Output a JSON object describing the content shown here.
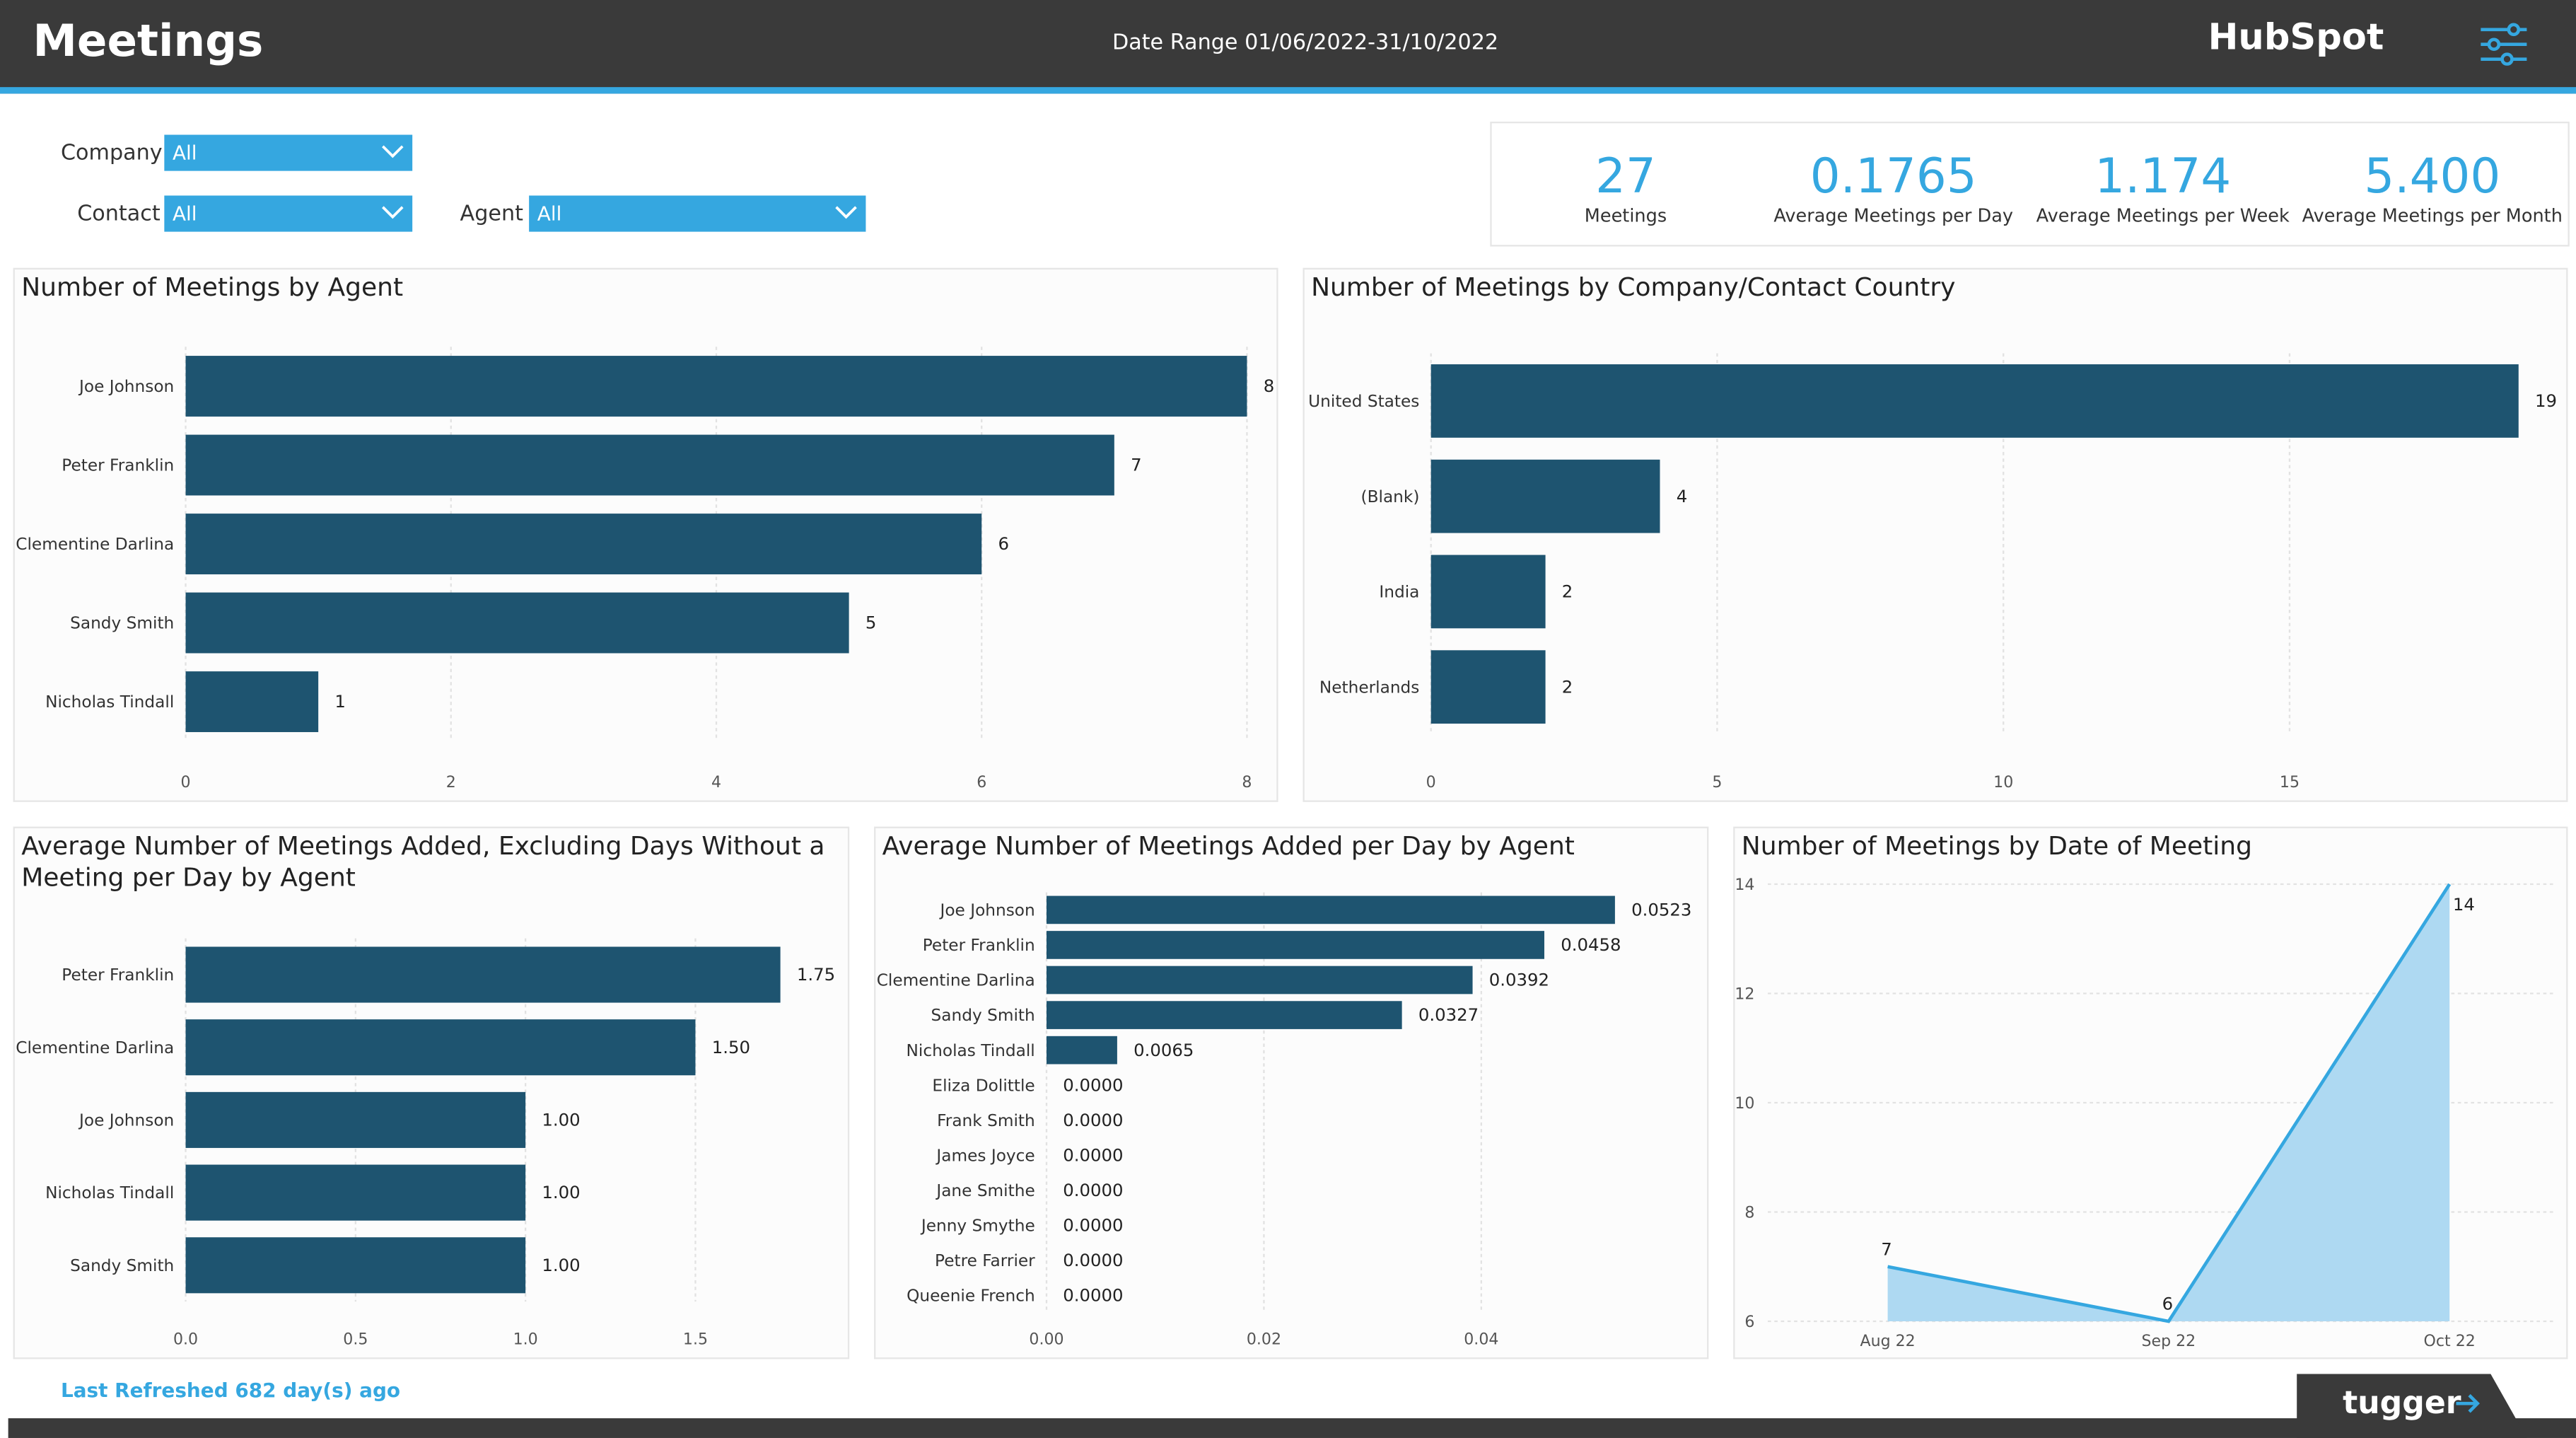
{
  "header": {
    "title": "Meetings",
    "date_range": "Date Range 01/06/2022-31/10/2022",
    "logo_text": "HubSpot",
    "menu_icon": "sliders-menu-icon"
  },
  "filters": {
    "company_label": "Company",
    "company_value": "All",
    "contact_label": "Contact",
    "contact_value": "All",
    "agent_label": "Agent",
    "agent_value": "All"
  },
  "kpis": [
    {
      "value": "27",
      "label": "Meetings"
    },
    {
      "value": "0.1765",
      "label": "Average Meetings per Day"
    },
    {
      "value": "1.174",
      "label": "Average Meetings per Week"
    },
    {
      "value": "5.400",
      "label": "Average Meetings per Month"
    }
  ],
  "colors": {
    "bar": "#1e5470",
    "accent": "#35a7e0",
    "area": "#aed9f2",
    "header": "#3a3a3a"
  },
  "chart_data": [
    {
      "type": "bar",
      "orientation": "horizontal",
      "title": "Number of Meetings by Agent",
      "categories": [
        "Joe Johnson",
        "Peter Franklin",
        "Clementine Darlina",
        "Sandy Smith",
        "Nicholas Tindall"
      ],
      "values": [
        8,
        7,
        6,
        5,
        1
      ],
      "value_labels": [
        "8",
        "7",
        "6",
        "5",
        "1"
      ],
      "xlim": [
        0,
        8
      ],
      "ticks": [
        0,
        2,
        4,
        6,
        8
      ],
      "tick_labels": [
        "0",
        "2",
        "4",
        "6",
        "8"
      ]
    },
    {
      "type": "bar",
      "orientation": "horizontal",
      "title": "Number of Meetings by Company/Contact Country",
      "categories": [
        "United States",
        "(Blank)",
        "India",
        "Netherlands"
      ],
      "values": [
        19,
        4,
        2,
        2
      ],
      "value_labels": [
        "19",
        "4",
        "2",
        "2"
      ],
      "xlim": [
        0,
        19
      ],
      "ticks": [
        0,
        5,
        10,
        15
      ],
      "tick_labels": [
        "0",
        "5",
        "10",
        "15"
      ]
    },
    {
      "type": "bar",
      "orientation": "horizontal",
      "title_lines": [
        "Average Number of Meetings Added, Excluding Days Without a",
        "Meeting per Day by Agent"
      ],
      "categories": [
        "Peter Franklin",
        "Clementine Darlina",
        "Joe Johnson",
        "Nicholas Tindall",
        "Sandy Smith"
      ],
      "values": [
        1.75,
        1.5,
        1.0,
        1.0,
        1.0
      ],
      "value_labels": [
        "1.75",
        "1.50",
        "1.00",
        "1.00",
        "1.00"
      ],
      "xlim": [
        0,
        1.75
      ],
      "ticks": [
        0,
        0.5,
        1.0,
        1.5
      ],
      "tick_labels": [
        "0.0",
        "0.5",
        "1.0",
        "1.5"
      ]
    },
    {
      "type": "bar",
      "orientation": "horizontal",
      "title": "Average Number of Meetings Added per Day by Agent",
      "categories": [
        "Joe Johnson",
        "Peter Franklin",
        "Clementine Darlina",
        "Sandy Smith",
        "Nicholas Tindall",
        "Eliza Dolittle",
        "Frank Smith",
        "James Joyce",
        "Jane Smithe",
        "Jenny Smythe",
        "Petre Farrier",
        "Queenie French"
      ],
      "values": [
        0.0523,
        0.0458,
        0.0392,
        0.0327,
        0.0065,
        0,
        0,
        0,
        0,
        0,
        0,
        0
      ],
      "value_labels": [
        "0.0523",
        "0.0458",
        "0.0392",
        "0.0327",
        "0.0065",
        "0.0000",
        "0.0000",
        "0.0000",
        "0.0000",
        "0.0000",
        "0.0000",
        "0.0000"
      ],
      "xlim": [
        0,
        0.0523
      ],
      "ticks": [
        0,
        0.02,
        0.04
      ],
      "tick_labels": [
        "0.00",
        "0.02",
        "0.04"
      ]
    },
    {
      "type": "area",
      "title": "Number of Meetings by Date of Meeting",
      "x": [
        "Aug 22",
        "Sep 22",
        "Oct 22"
      ],
      "values": [
        7,
        6,
        14
      ],
      "value_labels": [
        "7",
        "6",
        "14"
      ],
      "ylim": [
        6,
        14
      ],
      "yticks": [
        6,
        8,
        10,
        12,
        14
      ],
      "ytick_labels": [
        "6",
        "8",
        "10",
        "12",
        "14"
      ],
      "grid": true
    }
  ],
  "footer": {
    "last_refreshed": "Last Refreshed 682 day(s) ago",
    "brand": "tugger"
  }
}
